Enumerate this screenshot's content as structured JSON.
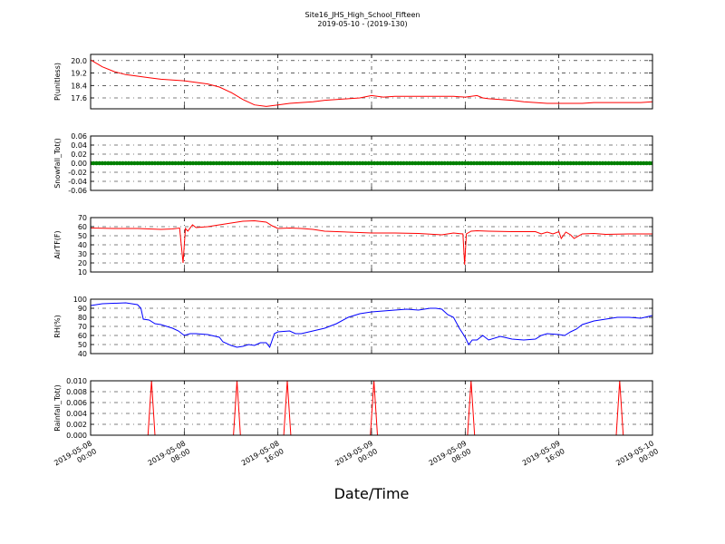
{
  "chart_data": {
    "type": "line",
    "title": "Site16_JHS_High_School_Fifteen",
    "subtitle": "2019-05-10 - (2019-130)",
    "xlabel": "Date/Time",
    "x_ticks": [
      {
        "hour": 0,
        "line1": "2019-05-08",
        "line2": "00:00"
      },
      {
        "hour": 8,
        "line1": "2019-05-08",
        "line2": "08:00"
      },
      {
        "hour": 16,
        "line1": "2019-05-08",
        "line2": "16:00"
      },
      {
        "hour": 24,
        "line1": "2019-05-09",
        "line2": "00:00"
      },
      {
        "hour": 32,
        "line1": "2019-05-09",
        "line2": "08:00"
      },
      {
        "hour": 40,
        "line1": "2019-05-09",
        "line2": "16:00"
      },
      {
        "hour": 48,
        "line1": "2019-05-10",
        "line2": "00:00"
      }
    ],
    "xlim_hours": [
      0,
      48
    ],
    "grid": true,
    "panels": [
      {
        "ylabel": "P(unitless)",
        "ylim": [
          16.9,
          20.4
        ],
        "yticks": [
          "17.6",
          "18.4",
          "19.2",
          "20.0"
        ],
        "color": "#ff0000",
        "series": [
          [
            0,
            20.05
          ],
          [
            1,
            19.6
          ],
          [
            2,
            19.3
          ],
          [
            3,
            19.1
          ],
          [
            4,
            19.0
          ],
          [
            5,
            18.9
          ],
          [
            6,
            18.8
          ],
          [
            7,
            18.75
          ],
          [
            8,
            18.7
          ],
          [
            9,
            18.6
          ],
          [
            10,
            18.5
          ],
          [
            11,
            18.3
          ],
          [
            12,
            17.95
          ],
          [
            13,
            17.5
          ],
          [
            14,
            17.15
          ],
          [
            15,
            17.05
          ],
          [
            16,
            17.15
          ],
          [
            17,
            17.25
          ],
          [
            18,
            17.3
          ],
          [
            19,
            17.35
          ],
          [
            20,
            17.45
          ],
          [
            21,
            17.5
          ],
          [
            22,
            17.55
          ],
          [
            23,
            17.6
          ],
          [
            24,
            17.75
          ],
          [
            25,
            17.65
          ],
          [
            26,
            17.7
          ],
          [
            27,
            17.7
          ],
          [
            28,
            17.7
          ],
          [
            29,
            17.7
          ],
          [
            30,
            17.7
          ],
          [
            31,
            17.7
          ],
          [
            32,
            17.65
          ],
          [
            33,
            17.75
          ],
          [
            33.5,
            17.6
          ],
          [
            34,
            17.55
          ],
          [
            35,
            17.5
          ],
          [
            36,
            17.45
          ],
          [
            37,
            17.35
          ],
          [
            38,
            17.3
          ],
          [
            39,
            17.25
          ],
          [
            40,
            17.25
          ],
          [
            41,
            17.25
          ],
          [
            42,
            17.25
          ],
          [
            43,
            17.3
          ],
          [
            44,
            17.3
          ],
          [
            45,
            17.3
          ],
          [
            46,
            17.3
          ],
          [
            47,
            17.3
          ],
          [
            48,
            17.35
          ]
        ]
      },
      {
        "ylabel": "Snowfall_Tot()",
        "ylim": [
          -0.06,
          0.06
        ],
        "yticks": [
          "-0.06",
          "-0.04",
          "-0.02",
          "0.00",
          "0.02",
          "0.04",
          "0.06"
        ],
        "color": "#008000",
        "marker": "dots",
        "constant_value": 0.0
      },
      {
        "ylabel": "AirTF(F)",
        "ylim": [
          10,
          70
        ],
        "yticks": [
          "10",
          "20",
          "30",
          "40",
          "50",
          "60",
          "70"
        ],
        "color": "#ff0000",
        "series": [
          [
            0,
            58.5
          ],
          [
            2,
            58
          ],
          [
            4,
            58
          ],
          [
            6,
            57
          ],
          [
            7,
            57.5
          ],
          [
            7.6,
            58.5
          ],
          [
            7.9,
            20
          ],
          [
            8.1,
            58
          ],
          [
            8.3,
            55
          ],
          [
            8.7,
            62
          ],
          [
            9,
            59
          ],
          [
            10,
            60
          ],
          [
            11,
            62
          ],
          [
            12,
            64
          ],
          [
            13,
            66
          ],
          [
            14,
            66.5
          ],
          [
            15,
            65
          ],
          [
            15.5,
            61
          ],
          [
            16,
            58
          ],
          [
            17,
            58.5
          ],
          [
            18,
            58
          ],
          [
            19,
            57
          ],
          [
            20,
            55
          ],
          [
            22,
            54
          ],
          [
            24,
            53
          ],
          [
            26,
            53
          ],
          [
            28,
            52.5
          ],
          [
            30,
            51
          ],
          [
            31,
            53
          ],
          [
            31.8,
            52
          ],
          [
            31.95,
            18
          ],
          [
            32.1,
            52
          ],
          [
            32.5,
            55
          ],
          [
            33,
            55.5
          ],
          [
            34,
            55
          ],
          [
            36,
            54.5
          ],
          [
            38,
            54.5
          ],
          [
            38.5,
            52
          ],
          [
            39,
            54
          ],
          [
            39.5,
            52
          ],
          [
            40,
            54.5
          ],
          [
            40.2,
            47
          ],
          [
            40.6,
            54
          ],
          [
            41,
            51
          ],
          [
            41.3,
            47
          ],
          [
            42,
            52
          ],
          [
            43,
            52.5
          ],
          [
            44,
            51.5
          ],
          [
            46,
            52
          ],
          [
            48,
            52
          ]
        ]
      },
      {
        "ylabel": "RH(%)",
        "ylim": [
          40,
          100
        ],
        "yticks": [
          "40",
          "50",
          "60",
          "70",
          "80",
          "90",
          "100"
        ],
        "color": "#0000ff",
        "series": [
          [
            0,
            93
          ],
          [
            1,
            95
          ],
          [
            3,
            96
          ],
          [
            4,
            94
          ],
          [
            4.3,
            90
          ],
          [
            4.5,
            78
          ],
          [
            5,
            77
          ],
          [
            5.5,
            73
          ],
          [
            6,
            72
          ],
          [
            7,
            68
          ],
          [
            7.5,
            65
          ],
          [
            8,
            60
          ],
          [
            8.5,
            62
          ],
          [
            9,
            62
          ],
          [
            10,
            61
          ],
          [
            11,
            58
          ],
          [
            11.3,
            53
          ],
          [
            12,
            49
          ],
          [
            12.5,
            47
          ],
          [
            13,
            48
          ],
          [
            13.5,
            50
          ],
          [
            14,
            49
          ],
          [
            14.5,
            52
          ],
          [
            15,
            52
          ],
          [
            15.3,
            47
          ],
          [
            15.7,
            62
          ],
          [
            16,
            64
          ],
          [
            17,
            65
          ],
          [
            17.5,
            62
          ],
          [
            18,
            62
          ],
          [
            19,
            65
          ],
          [
            20,
            68
          ],
          [
            21,
            73
          ],
          [
            22,
            80
          ],
          [
            23,
            84
          ],
          [
            24,
            86
          ],
          [
            25,
            87
          ],
          [
            26,
            88
          ],
          [
            27,
            89
          ],
          [
            28,
            88
          ],
          [
            29,
            90
          ],
          [
            29.5,
            90
          ],
          [
            30,
            89
          ],
          [
            30.5,
            83
          ],
          [
            31,
            80
          ],
          [
            31.5,
            68
          ],
          [
            32,
            58
          ],
          [
            32.3,
            50
          ],
          [
            32.6,
            55
          ],
          [
            33,
            55
          ],
          [
            33.5,
            60
          ],
          [
            34,
            55
          ],
          [
            35,
            59
          ],
          [
            36,
            56
          ],
          [
            37,
            55
          ],
          [
            38,
            56
          ],
          [
            38.5,
            60
          ],
          [
            39,
            62
          ],
          [
            40,
            61
          ],
          [
            40.5,
            60
          ],
          [
            41,
            64
          ],
          [
            41.5,
            67
          ],
          [
            42,
            72
          ],
          [
            43,
            76
          ],
          [
            44,
            78
          ],
          [
            45,
            80
          ],
          [
            46,
            80
          ],
          [
            47,
            79
          ],
          [
            48,
            82
          ]
        ]
      },
      {
        "ylabel": "Rainfall_Tot()",
        "ylim": [
          0,
          0.01
        ],
        "yticks": [
          "0.000",
          "0.002",
          "0.004",
          "0.006",
          "0.008",
          "0.010"
        ],
        "color": "#ff0000",
        "spikes_at_hours": [
          5.2,
          12.5,
          16.8,
          24.2,
          32.5,
          45.2
        ],
        "spike_value": 0.01
      }
    ]
  }
}
